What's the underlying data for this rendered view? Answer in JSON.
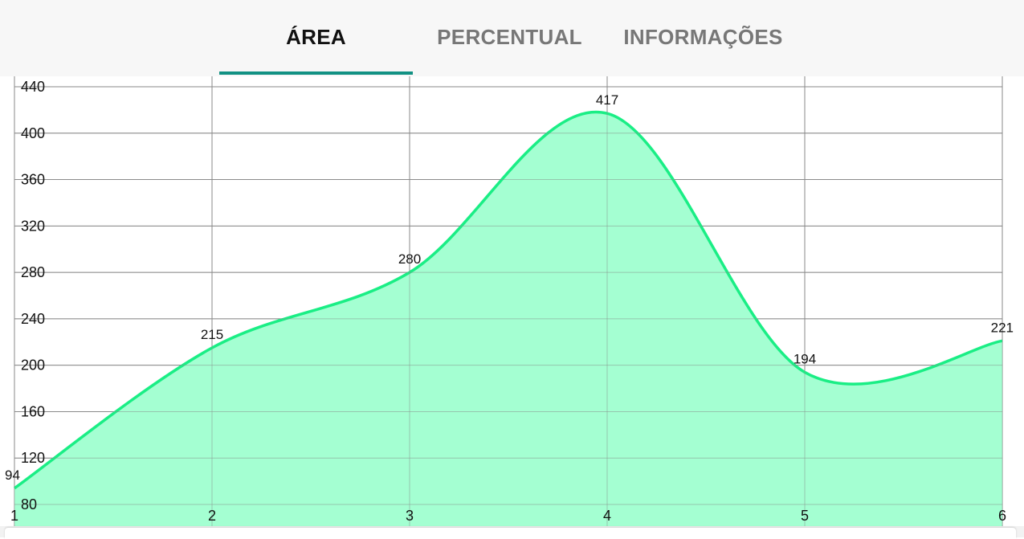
{
  "tabs": [
    {
      "label": "ÁREA",
      "active": true
    },
    {
      "label": "PERCENTUAL",
      "active": false
    },
    {
      "label": "INFORMAÇÕES",
      "active": false
    }
  ],
  "colors": {
    "accent": "#129183",
    "line": "#1aee85",
    "fill": "#9fffd0",
    "grid": "#8a8a8a"
  },
  "chart_data": {
    "type": "area",
    "x": [
      1,
      2,
      3,
      4,
      5,
      6
    ],
    "values": [
      94,
      215,
      280,
      417,
      194,
      221
    ],
    "ylim": [
      80,
      440
    ],
    "yticks": [
      80,
      120,
      160,
      200,
      240,
      280,
      320,
      360,
      400,
      440
    ],
    "xticks": [
      1,
      2,
      3,
      4,
      5,
      6
    ],
    "title": "",
    "xlabel": "",
    "ylabel": "",
    "grid": true,
    "smooth": true
  }
}
